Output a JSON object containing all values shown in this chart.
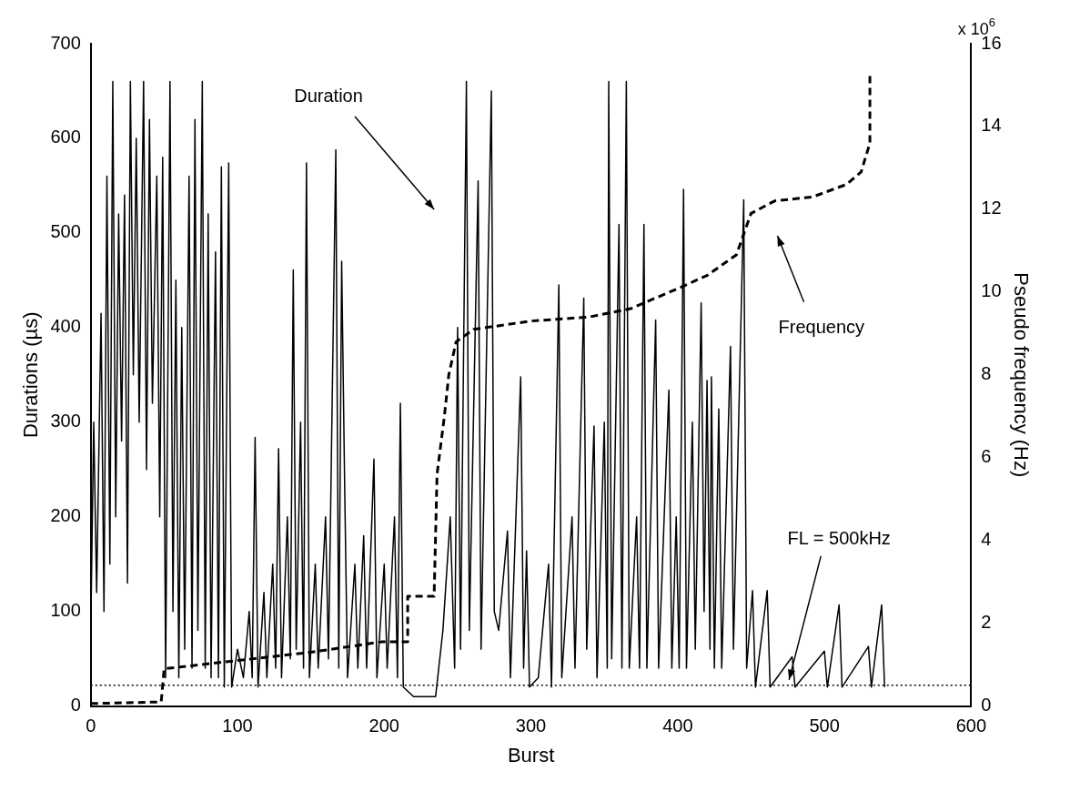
{
  "chart_data": {
    "type": "line",
    "xlabel": "Burst",
    "ylabel": "Durations (µs)",
    "y2label": "Pseudo frequency (Hz)",
    "xlim": [
      0,
      600
    ],
    "xticks": [
      0,
      100,
      200,
      300,
      400,
      500,
      600
    ],
    "ylim": [
      0,
      700
    ],
    "yticks": [
      0,
      100,
      200,
      300,
      400,
      500,
      600,
      700
    ],
    "y2lim": [
      0,
      16
    ],
    "y2ticks": [
      0,
      2,
      4,
      6,
      8,
      10,
      12,
      14,
      16
    ],
    "grid": false,
    "legend": false,
    "marker": "none",
    "series": [
      {
        "color": "#000000",
        "line_style": "solid",
        "x": [
          0,
          2,
          4,
          7,
          9,
          11,
          13,
          15,
          17,
          19,
          21,
          23,
          25,
          27,
          29,
          31,
          33,
          36,
          38,
          40,
          42,
          45,
          47,
          49,
          51,
          54,
          56,
          58,
          60,
          62,
          64,
          67,
          69,
          71,
          73,
          76,
          78,
          80,
          82,
          85,
          87,
          89,
          91,
          94,
          96,
          100,
          104,
          108,
          110,
          112,
          114,
          118,
          120,
          124,
          126,
          128,
          130,
          134,
          136,
          138,
          140,
          143,
          145,
          147,
          149,
          153,
          155,
          160,
          162,
          167,
          169,
          171,
          173,
          175,
          180,
          182,
          186,
          188,
          193,
          195,
          200,
          202,
          207,
          209,
          211,
          213,
          220,
          235,
          240,
          245,
          248,
          250,
          252,
          256,
          258,
          264,
          266,
          273,
          275,
          278,
          284,
          286,
          293,
          295,
          297,
          299,
          305,
          312,
          314,
          319,
          321,
          328,
          330,
          336,
          338,
          343,
          345,
          350,
          352,
          353,
          355,
          360,
          362,
          365,
          367,
          372,
          374,
          377,
          379,
          385,
          387,
          394,
          396,
          399,
          401,
          404,
          406,
          410,
          412,
          416,
          418,
          420,
          422,
          423,
          425,
          428,
          430,
          436,
          438,
          445,
          447,
          451,
          453,
          461,
          463,
          478,
          480,
          500,
          502,
          510,
          512,
          530,
          532,
          539,
          541
        ],
        "values": [
          80,
          300,
          120,
          415,
          100,
          560,
          150,
          660,
          200,
          520,
          280,
          540,
          130,
          660,
          350,
          600,
          300,
          660,
          250,
          620,
          320,
          560,
          200,
          580,
          30,
          660,
          100,
          450,
          30,
          400,
          60,
          560,
          40,
          620,
          80,
          660,
          40,
          520,
          30,
          480,
          30,
          570,
          20,
          574,
          20,
          60,
          30,
          100,
          30,
          284,
          20,
          120,
          30,
          150,
          40,
          272,
          30,
          200,
          50,
          461,
          60,
          300,
          40,
          574,
          30,
          150,
          40,
          200,
          50,
          588,
          40,
          470,
          236,
          30,
          150,
          40,
          180,
          40,
          261,
          30,
          150,
          40,
          200,
          30,
          320,
          20,
          10,
          10,
          80,
          200,
          40,
          400,
          60,
          660,
          80,
          555,
          60,
          650,
          100,
          80,
          185,
          30,
          348,
          40,
          164,
          20,
          30,
          150,
          20,
          445,
          30,
          200,
          40,
          431,
          60,
          296,
          30,
          300,
          40,
          660,
          50,
          509,
          40,
          660,
          40,
          200,
          40,
          509,
          40,
          408,
          40,
          334,
          40,
          200,
          40,
          546,
          40,
          300,
          60,
          426,
          100,
          344,
          60,
          348,
          40,
          314,
          40,
          380,
          60,
          535,
          40,
          122,
          20,
          122,
          20,
          52,
          20,
          58,
          20,
          107,
          20,
          63,
          20,
          107,
          20
        ]
      },
      {
        "color": "#000000",
        "line_style": "dashed",
        "axis": "y2",
        "x": [
          0,
          48,
          50,
          100,
          150,
          198,
          216,
          216,
          234,
          236,
          241,
          244,
          249,
          261,
          300,
          340,
          368,
          401,
          420,
          440,
          450,
          466,
          492,
          515,
          525,
          531,
          531
        ],
        "values": [
          0.06,
          0.1,
          0.9,
          1.1,
          1.3,
          1.55,
          1.55,
          2.65,
          2.65,
          5.6,
          7.0,
          8.0,
          8.8,
          9.1,
          9.3,
          9.4,
          9.6,
          10.1,
          10.4,
          10.9,
          11.9,
          12.2,
          12.3,
          12.6,
          12.9,
          13.6,
          15.3
        ]
      }
    ],
    "ref_lines": [
      {
        "axis": "y2",
        "value": 0.5,
        "label": "FL = 500kHz",
        "line_style": "dotted",
        "color": "#000000"
      }
    ],
    "annotations": [
      "Duration",
      "Frequency",
      "x 10$^{6}$"
    ]
  }
}
